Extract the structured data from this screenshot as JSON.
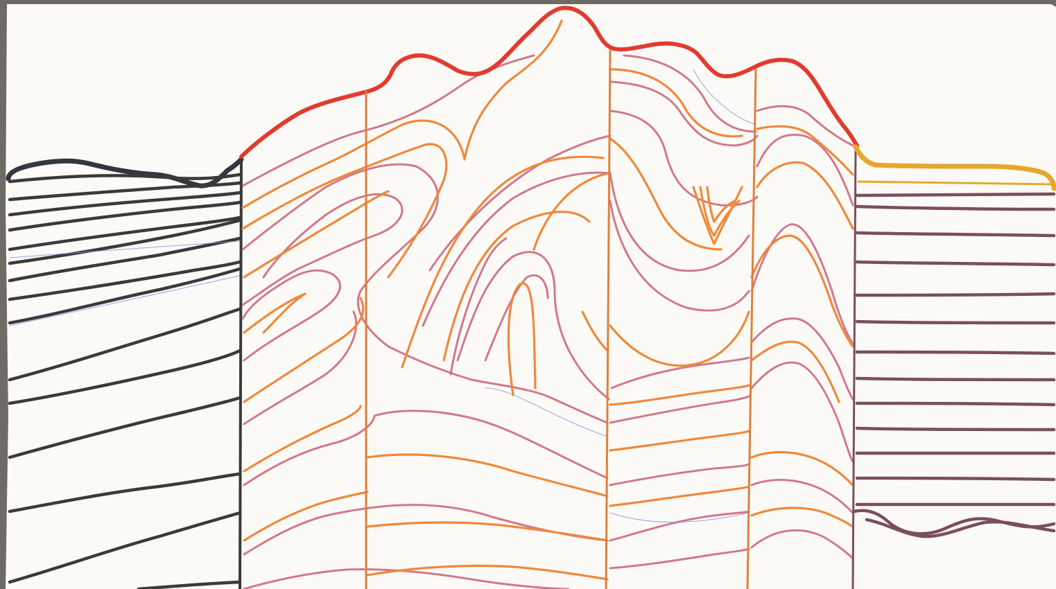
{
  "colors": {
    "frame": "#6e6a66",
    "paper": "#fbfaf6",
    "left_block_ink": "#3a3a3a",
    "left_topo_ink": "#33373e",
    "center_topo_ink": "#e23b30",
    "orange_ink": "#f0883a",
    "pink_ink": "#c9607a",
    "fault_ink": "#e07f3c",
    "right_block_ink": "#7a4e5f",
    "right_topo_ink": "#e7a62c",
    "construction_ink": "#7f8fe0"
  },
  "blocks": [
    {
      "id": "left-block",
      "ink": "black",
      "layering": "gently dipping"
    },
    {
      "id": "center-block",
      "ink": "orange-pink",
      "layering": "folded"
    },
    {
      "id": "right-block",
      "ink": "purple",
      "layering": "horizontal"
    }
  ],
  "faults": [
    {
      "id": "boundary-left",
      "type": "block-boundary"
    },
    {
      "id": "fault-1",
      "type": "vertical"
    },
    {
      "id": "fault-2",
      "type": "vertical"
    },
    {
      "id": "fault-3",
      "type": "vertical"
    },
    {
      "id": "boundary-right",
      "type": "block-boundary"
    }
  ]
}
